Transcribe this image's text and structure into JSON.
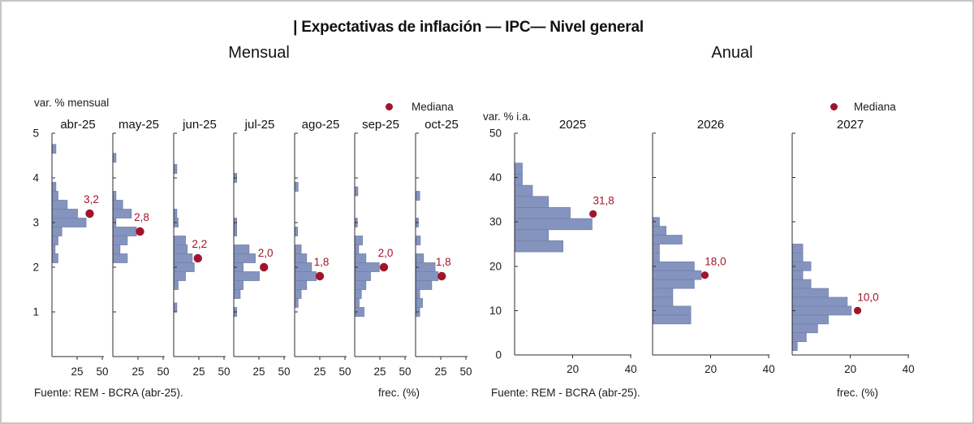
{
  "frame": {
    "title": "| Expectativas de inflación — IPC— Nivel general"
  },
  "sections": {
    "monthly": {
      "heading": "Mensual",
      "unit_label": "var. % mensual",
      "legend_label": "Mediana",
      "source": "Fuente: REM - BCRA (abr-25).",
      "freq_label": "frec. (%)",
      "y_ticks": [
        "5",
        "4",
        "3",
        "2",
        "1"
      ],
      "x_ticks": [
        "25",
        "50"
      ]
    },
    "annual": {
      "heading": "Anual",
      "unit_label": "var. % i.a.",
      "legend_label": "Mediana",
      "source": "Fuente: REM - BCRA (abr-25).",
      "freq_label": "frec. (%)",
      "y_ticks": [
        "50",
        "40",
        "30",
        "20",
        "10",
        "0"
      ],
      "x_ticks": [
        "20",
        "40"
      ]
    }
  },
  "colors": {
    "bar_fill": "#8594BE",
    "bar_edge": "#7381AB",
    "median": "#A0152B",
    "axis": "#2E2E2E"
  },
  "chart_data": [
    {
      "type": "bar",
      "orientation": "horizontal-histogram",
      "title": "abr-25",
      "section": "monthly",
      "median": 3.2,
      "median_label": "3,2",
      "dot_x": 37.5,
      "bin_height": 0.2,
      "ylim": [
        0,
        5
      ],
      "xlim": [
        0,
        50
      ],
      "bins": [
        [
          4.65,
          3.5
        ],
        [
          3.8,
          3.5
        ],
        [
          3.6,
          5.6
        ],
        [
          3.4,
          14.8
        ],
        [
          3.2,
          25
        ],
        [
          3.0,
          33.5
        ],
        [
          2.8,
          9.4
        ],
        [
          2.6,
          5.6
        ],
        [
          2.4,
          2.7
        ],
        [
          2.2,
          5.6
        ]
      ]
    },
    {
      "type": "bar",
      "orientation": "horizontal-histogram",
      "title": "may-25",
      "section": "monthly",
      "median": 2.8,
      "median_label": "2,8",
      "dot_x": 27,
      "bin_height": 0.2,
      "ylim": [
        0,
        5
      ],
      "xlim": [
        0,
        50
      ],
      "bins": [
        [
          4.45,
          2.7
        ],
        [
          3.6,
          2.7
        ],
        [
          3.4,
          9.4
        ],
        [
          3.2,
          18
        ],
        [
          3.0,
          2.7
        ],
        [
          2.8,
          23
        ],
        [
          2.6,
          14
        ],
        [
          2.4,
          6.7
        ],
        [
          2.2,
          14
        ]
      ]
    },
    {
      "type": "bar",
      "orientation": "horizontal-histogram",
      "title": "jun-25",
      "section": "monthly",
      "median": 2.2,
      "median_label": "2,2",
      "dot_x": 24,
      "bin_height": 0.2,
      "ylim": [
        0,
        5
      ],
      "xlim": [
        0,
        50
      ],
      "bins": [
        [
          4.2,
          2.7
        ],
        [
          3.2,
          2.7
        ],
        [
          3.0,
          4
        ],
        [
          2.6,
          11.3
        ],
        [
          2.4,
          13
        ],
        [
          2.2,
          18
        ],
        [
          2.0,
          20
        ],
        [
          1.8,
          11.3
        ],
        [
          1.6,
          4
        ],
        [
          1.1,
          2.7
        ]
      ]
    },
    {
      "type": "bar",
      "orientation": "horizontal-histogram",
      "title": "jul-25",
      "section": "monthly",
      "median": 2.0,
      "median_label": "2,0",
      "dot_x": 30,
      "bin_height": 0.2,
      "ylim": [
        0,
        5
      ],
      "xlim": [
        0,
        50
      ],
      "bins": [
        [
          4.0,
          2.5
        ],
        [
          3.0,
          2.5
        ],
        [
          2.8,
          2.5
        ],
        [
          2.4,
          14.8
        ],
        [
          2.2,
          21
        ],
        [
          2.0,
          8.9
        ],
        [
          1.8,
          25
        ],
        [
          1.6,
          8.9
        ],
        [
          1.4,
          6
        ],
        [
          1.0,
          2.5
        ]
      ]
    },
    {
      "type": "bar",
      "orientation": "horizontal-histogram",
      "title": "ago-25",
      "section": "monthly",
      "median": 1.8,
      "median_label": "1,8",
      "dot_x": 25,
      "bin_height": 0.2,
      "ylim": [
        0,
        5
      ],
      "xlim": [
        0,
        50
      ],
      "bins": [
        [
          3.8,
          3
        ],
        [
          2.8,
          2.5
        ],
        [
          2.4,
          6.1
        ],
        [
          2.2,
          11.5
        ],
        [
          2.0,
          16.4
        ],
        [
          1.8,
          21
        ],
        [
          1.6,
          11.5
        ],
        [
          1.4,
          6.1
        ],
        [
          1.2,
          3
        ]
      ]
    },
    {
      "type": "bar",
      "orientation": "horizontal-histogram",
      "title": "sep-25",
      "section": "monthly",
      "median": 2.0,
      "median_label": "2,0",
      "dot_x": 29,
      "bin_height": 0.2,
      "ylim": [
        0,
        5
      ],
      "xlim": [
        0,
        50
      ],
      "bins": [
        [
          3.7,
          2.7
        ],
        [
          3.0,
          2.2
        ],
        [
          2.6,
          7.3
        ],
        [
          2.4,
          3.5
        ],
        [
          2.2,
          10.7
        ],
        [
          2.0,
          24
        ],
        [
          1.8,
          15.3
        ],
        [
          1.6,
          10.7
        ],
        [
          1.4,
          6.2
        ],
        [
          1.2,
          4
        ],
        [
          1.0,
          8.9
        ]
      ]
    },
    {
      "type": "bar",
      "orientation": "horizontal-histogram",
      "title": "oct-25",
      "section": "monthly",
      "median": 1.8,
      "median_label": "1,8",
      "dot_x": 26,
      "bin_height": 0.2,
      "ylim": [
        0,
        5
      ],
      "xlim": [
        0,
        50
      ],
      "bins": [
        [
          3.6,
          3.7
        ],
        [
          3.0,
          2.4
        ],
        [
          2.6,
          4.3
        ],
        [
          2.2,
          7.5
        ],
        [
          2.0,
          19
        ],
        [
          1.8,
          22
        ],
        [
          1.6,
          15.6
        ],
        [
          1.4,
          3.7
        ],
        [
          1.2,
          6.5
        ],
        [
          1.0,
          3.7
        ]
      ]
    },
    {
      "type": "bar",
      "orientation": "horizontal-histogram",
      "title": "2025",
      "section": "annual",
      "median": 31.8,
      "median_label": "31,8",
      "dot_x": 27,
      "bin_height": 2.5,
      "ylim": [
        0,
        50
      ],
      "xlim": [
        0,
        40
      ],
      "bins": [
        [
          42,
          2.5
        ],
        [
          39.5,
          2.5
        ],
        [
          37,
          6
        ],
        [
          34.5,
          11.5
        ],
        [
          32,
          19
        ],
        [
          29.5,
          26.5
        ],
        [
          27,
          11.5
        ],
        [
          24.5,
          16.5
        ]
      ]
    },
    {
      "type": "bar",
      "orientation": "horizontal-histogram",
      "title": "2026",
      "section": "annual",
      "median": 18.0,
      "median_label": "18,0",
      "dot_x": 18,
      "bin_height": 2,
      "ylim": [
        0,
        50
      ],
      "xlim": [
        0,
        40
      ],
      "bins": [
        [
          30,
          2.2
        ],
        [
          28,
          4.5
        ],
        [
          26,
          10
        ],
        [
          24,
          2.2
        ],
        [
          22,
          2.2
        ],
        [
          20,
          14.2
        ],
        [
          18,
          16.6
        ],
        [
          16,
          14.2
        ],
        [
          14,
          6.8
        ],
        [
          12,
          6.8
        ],
        [
          10,
          13
        ],
        [
          8,
          13
        ]
      ]
    },
    {
      "type": "bar",
      "orientation": "horizontal-histogram",
      "title": "2027",
      "section": "annual",
      "median": 10.0,
      "median_label": "10,0",
      "dot_x": 22.5,
      "bin_height": 2,
      "ylim": [
        0,
        50
      ],
      "xlim": [
        0,
        40
      ],
      "bins": [
        [
          24,
          3.5
        ],
        [
          22,
          3.5
        ],
        [
          20,
          6.3
        ],
        [
          18,
          3.5
        ],
        [
          16,
          6.3
        ],
        [
          14,
          12.3
        ],
        [
          12,
          18.8
        ],
        [
          10,
          20.2
        ],
        [
          8,
          12.3
        ],
        [
          6,
          8.6
        ],
        [
          4,
          4.7
        ],
        [
          2,
          1.6
        ]
      ]
    }
  ]
}
